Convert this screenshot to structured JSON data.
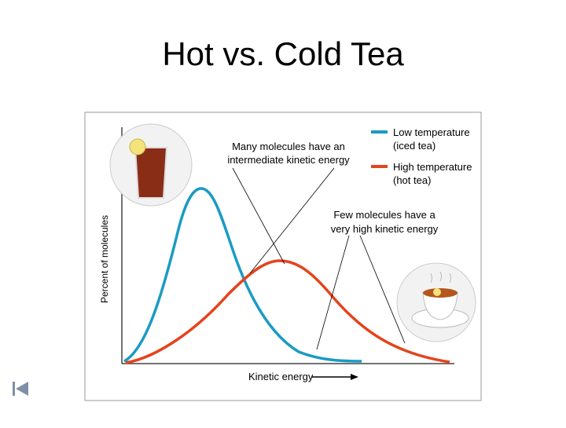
{
  "slide": {
    "title": "Hot vs. Cold Tea"
  },
  "diagram": {
    "y_axis_label": "Percent of molecules",
    "x_axis_label": "Kinetic energy",
    "legend": [
      {
        "line1": "Low temperature",
        "line2": "(iced tea)",
        "color": "#1a9bc3"
      },
      {
        "line1": "High temperature",
        "line2": "(hot tea)",
        "color": "#e5431c"
      }
    ],
    "annotations": [
      {
        "line1": "Many molecules have an",
        "line2": "intermediate kinetic energy"
      },
      {
        "line1": "Few molecules have a",
        "line2": "very high kinetic energy"
      }
    ]
  }
}
